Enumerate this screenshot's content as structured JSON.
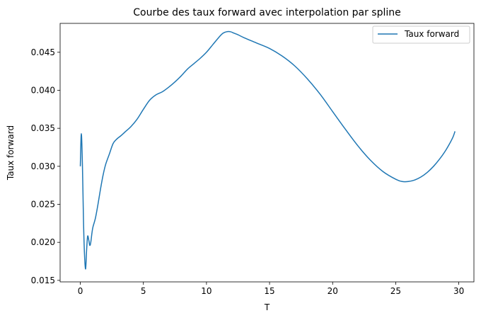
{
  "chart_data": {
    "type": "line",
    "title": "Courbe des taux forward avec interpolation par spline",
    "xlabel": "T",
    "ylabel": "Taux forward",
    "xlim": [
      -1.6,
      31.2
    ],
    "ylim": [
      0.0148,
      0.0488
    ],
    "xticks": [
      0,
      5,
      10,
      15,
      20,
      25,
      30
    ],
    "xtick_labels": [
      "0",
      "5",
      "10",
      "15",
      "20",
      "25",
      "30"
    ],
    "yticks": [
      0.015,
      0.02,
      0.025,
      0.03,
      0.035,
      0.04,
      0.045
    ],
    "ytick_labels": [
      "0.015",
      "0.020",
      "0.025",
      "0.030",
      "0.035",
      "0.040",
      "0.045"
    ],
    "grid": false,
    "legend": {
      "position": "top-right",
      "entries": [
        "Taux forward"
      ]
    },
    "colors": {
      "series": "#1f77b4",
      "axes": "#000000",
      "legend_border": "#cccccc"
    },
    "series": [
      {
        "name": "Taux forward",
        "x": [
          0.0,
          0.08,
          0.17,
          0.25,
          0.33,
          0.42,
          0.5,
          0.58,
          0.67,
          0.75,
          0.83,
          0.92,
          1.0,
          1.2,
          1.4,
          1.6,
          1.8,
          2.0,
          2.3,
          2.6,
          2.9,
          3.2,
          3.6,
          4.0,
          4.5,
          5.0,
          5.5,
          6.0,
          6.5,
          7.0,
          7.5,
          8.0,
          8.5,
          9.0,
          9.5,
          10.0,
          10.5,
          11.0,
          11.3,
          11.6,
          11.9,
          12.2,
          12.5,
          13.0,
          14.0,
          15.0,
          16.0,
          17.0,
          18.0,
          19.0,
          20.0,
          21.0,
          22.0,
          23.0,
          24.0,
          25.0,
          25.5,
          26.0,
          26.5,
          27.0,
          27.5,
          28.0,
          28.5,
          29.0,
          29.5,
          29.7
        ],
        "y": [
          0.03,
          0.0343,
          0.03,
          0.023,
          0.0185,
          0.0165,
          0.019,
          0.0208,
          0.0203,
          0.0196,
          0.02,
          0.0212,
          0.022,
          0.0232,
          0.025,
          0.027,
          0.0288,
          0.0302,
          0.0316,
          0.033,
          0.0336,
          0.034,
          0.0346,
          0.0352,
          0.0362,
          0.0375,
          0.0387,
          0.0394,
          0.0398,
          0.0404,
          0.0411,
          0.0419,
          0.0428,
          0.0435,
          0.0442,
          0.045,
          0.046,
          0.047,
          0.0475,
          0.0477,
          0.0477,
          0.0475,
          0.0473,
          0.0469,
          0.0462,
          0.0455,
          0.0445,
          0.0432,
          0.0415,
          0.0395,
          0.0372,
          0.0349,
          0.0327,
          0.0308,
          0.0293,
          0.0283,
          0.028,
          0.028,
          0.0282,
          0.0286,
          0.0292,
          0.03,
          0.031,
          0.0322,
          0.0337,
          0.0346
        ]
      }
    ]
  }
}
